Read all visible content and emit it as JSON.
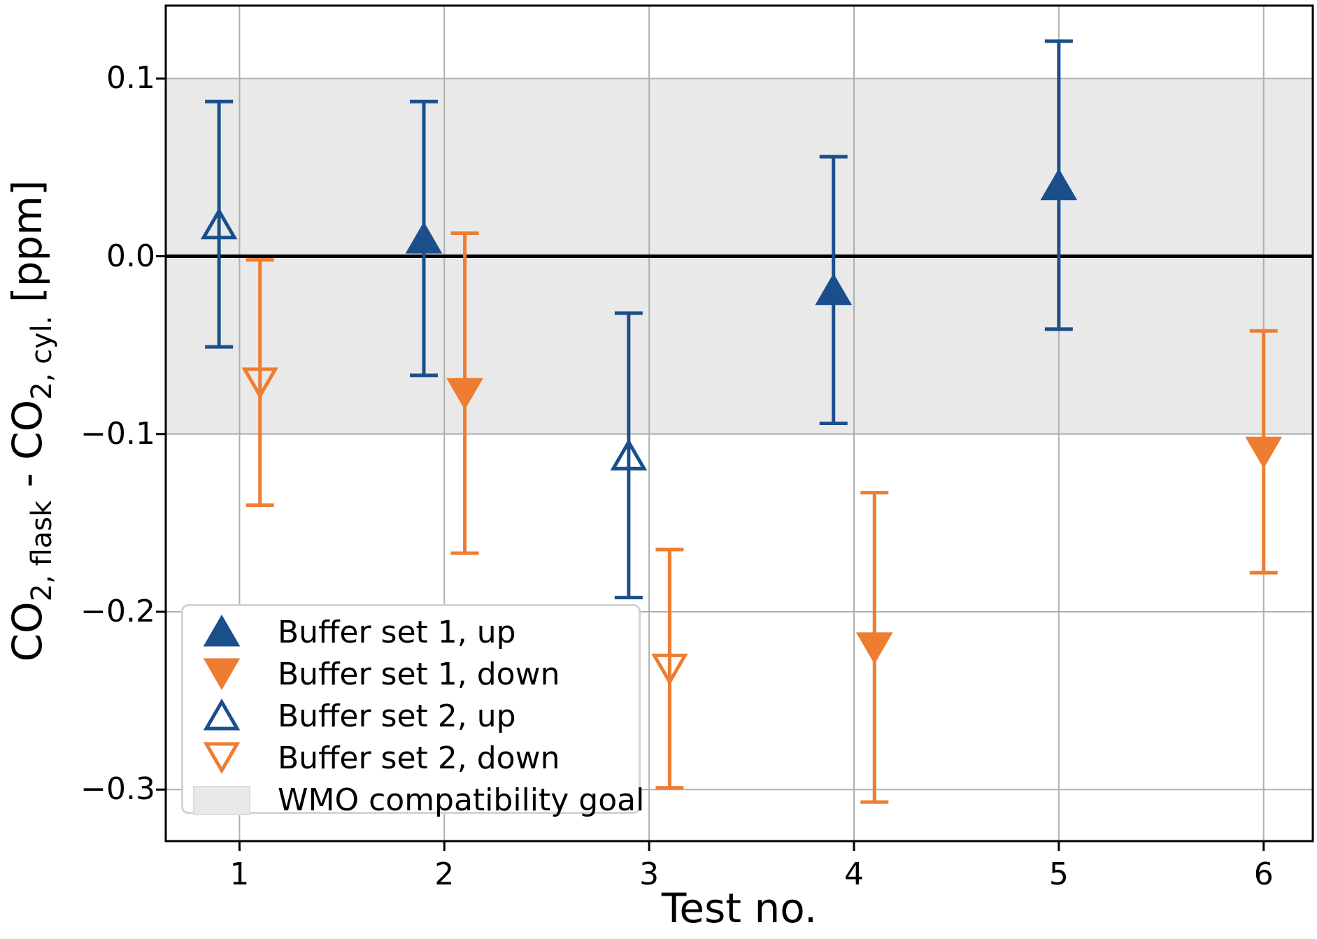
{
  "chart_data": {
    "type": "scatter",
    "title": "",
    "xlabel": "Test no.",
    "ylabel_parts": [
      {
        "text": "CO",
        "sub": false
      },
      {
        "text": "2, flask",
        "sub": true
      },
      {
        "text": " - CO",
        "sub": false
      },
      {
        "text": "2, cyl.",
        "sub": true
      },
      {
        "text": " [ppm]",
        "sub": false
      }
    ],
    "xlim": [
      0.64,
      6.24
    ],
    "ylim": [
      -0.329,
      0.141
    ],
    "xticks": {
      "values": [
        1,
        2,
        3,
        4,
        5,
        6
      ],
      "labels": [
        "1",
        "2",
        "3",
        "4",
        "5",
        "6"
      ]
    },
    "yticks": {
      "values": [
        0.1,
        0.0,
        -0.1,
        -0.2,
        -0.3
      ],
      "labels": [
        "0.1",
        "0.0",
        "−0.1",
        "−0.2",
        "−0.3"
      ]
    },
    "grid": true,
    "zero_line": 0.0,
    "band": {
      "label": "WMO compatibility goal",
      "ymin": -0.1,
      "ymax": 0.1
    },
    "colors": {
      "blue": "#1a4f8b",
      "orange": "#ee7c31",
      "band": "#e9e9e9",
      "grid": "#b0b0b0",
      "spine": "#000000",
      "zero_line": "#000000",
      "legend_edge": "#d4d4d4"
    },
    "points": [
      {
        "test": 1,
        "x": 0.9,
        "series": "Buffer set 2, up",
        "value": 0.018,
        "error": 0.069,
        "color": "blue",
        "marker": "triangle-up",
        "fill": "open"
      },
      {
        "test": 1,
        "x": 1.1,
        "series": "Buffer set 2, down",
        "value": -0.071,
        "error": 0.069,
        "color": "orange",
        "marker": "triangle-down",
        "fill": "open"
      },
      {
        "test": 2,
        "x": 1.9,
        "series": "Buffer set 1, up",
        "value": 0.01,
        "error": 0.077,
        "color": "blue",
        "marker": "triangle-up",
        "fill": "filled"
      },
      {
        "test": 2,
        "x": 2.1,
        "series": "Buffer set 1, down",
        "value": -0.077,
        "error": 0.09,
        "color": "orange",
        "marker": "triangle-down",
        "fill": "filled"
      },
      {
        "test": 3,
        "x": 2.9,
        "series": "Buffer set 2, up",
        "value": -0.112,
        "error": 0.08,
        "color": "blue",
        "marker": "triangle-up",
        "fill": "open"
      },
      {
        "test": 3,
        "x": 3.1,
        "series": "Buffer set 2, down",
        "value": -0.232,
        "error": 0.067,
        "color": "orange",
        "marker": "triangle-down",
        "fill": "open"
      },
      {
        "test": 4,
        "x": 3.9,
        "series": "Buffer set 1, up",
        "value": -0.019,
        "error": 0.075,
        "color": "blue",
        "marker": "triangle-up",
        "fill": "filled"
      },
      {
        "test": 4,
        "x": 4.1,
        "series": "Buffer set 1, down",
        "value": -0.22,
        "error": 0.087,
        "color": "orange",
        "marker": "triangle-down",
        "fill": "filled"
      },
      {
        "test": 5,
        "x": 5.0,
        "series": "Buffer set 1, up",
        "value": 0.04,
        "error": 0.081,
        "color": "blue",
        "marker": "triangle-up",
        "fill": "filled"
      },
      {
        "test": 6,
        "x": 6.0,
        "series": "Buffer set 1, down",
        "value": -0.11,
        "error": 0.068,
        "color": "orange",
        "marker": "triangle-down",
        "fill": "filled"
      }
    ],
    "legend": {
      "position": "lower left",
      "entries": [
        {
          "label": "Buffer set 1, up",
          "marker": "triangle-up",
          "fill": "filled",
          "color": "blue"
        },
        {
          "label": "Buffer set 1, down",
          "marker": "triangle-down",
          "fill": "filled",
          "color": "orange"
        },
        {
          "label": "Buffer set 2, up",
          "marker": "triangle-up",
          "fill": "open",
          "color": "blue"
        },
        {
          "label": "Buffer set 2, down",
          "marker": "triangle-down",
          "fill": "open",
          "color": "orange"
        },
        {
          "label": "WMO compatibility goal",
          "marker": "patch",
          "fill": "filled",
          "color": "band"
        }
      ]
    }
  }
}
